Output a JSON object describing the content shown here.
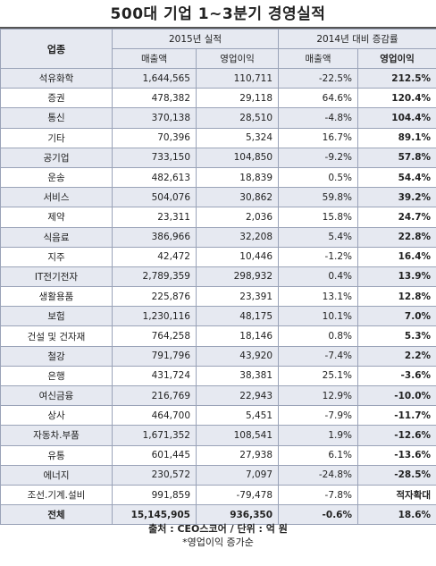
{
  "title": "500대 기업 1~3분기 경영실적",
  "header": {
    "category": "업종",
    "group_2015": "2015년 실적",
    "group_change": "2014년 대비 증감률",
    "sub": [
      "매출액",
      "영업이익",
      "매출액",
      "영업이익"
    ]
  },
  "rows": [
    {
      "cat": "석유화학",
      "sales": "1,644,565",
      "op": "110,711",
      "sales_chg": "-22.5%",
      "op_chg": "212.5%"
    },
    {
      "cat": "증권",
      "sales": "478,382",
      "op": "29,118",
      "sales_chg": "64.6%",
      "op_chg": "120.4%"
    },
    {
      "cat": "통신",
      "sales": "370,138",
      "op": "28,510",
      "sales_chg": "-4.8%",
      "op_chg": "104.4%"
    },
    {
      "cat": "기타",
      "sales": "70,396",
      "op": "5,324",
      "sales_chg": "16.7%",
      "op_chg": "89.1%"
    },
    {
      "cat": "공기업",
      "sales": "733,150",
      "op": "104,850",
      "sales_chg": "-9.2%",
      "op_chg": "57.8%"
    },
    {
      "cat": "운송",
      "sales": "482,613",
      "op": "18,839",
      "sales_chg": "0.5%",
      "op_chg": "54.4%"
    },
    {
      "cat": "서비스",
      "sales": "504,076",
      "op": "30,862",
      "sales_chg": "59.8%",
      "op_chg": "39.2%"
    },
    {
      "cat": "제약",
      "sales": "23,311",
      "op": "2,036",
      "sales_chg": "15.8%",
      "op_chg": "24.7%"
    },
    {
      "cat": "식음료",
      "sales": "386,966",
      "op": "32,208",
      "sales_chg": "5.4%",
      "op_chg": "22.8%"
    },
    {
      "cat": "지주",
      "sales": "42,472",
      "op": "10,446",
      "sales_chg": "-1.2%",
      "op_chg": "16.4%"
    },
    {
      "cat": "IT전기전자",
      "sales": "2,789,359",
      "op": "298,932",
      "sales_chg": "0.4%",
      "op_chg": "13.9%"
    },
    {
      "cat": "생활용품",
      "sales": "225,876",
      "op": "23,391",
      "sales_chg": "13.1%",
      "op_chg": "12.8%"
    },
    {
      "cat": "보험",
      "sales": "1,230,116",
      "op": "48,175",
      "sales_chg": "10.1%",
      "op_chg": "7.0%"
    },
    {
      "cat": "건설 및 건자재",
      "sales": "764,258",
      "op": "18,146",
      "sales_chg": "0.8%",
      "op_chg": "5.3%"
    },
    {
      "cat": "철강",
      "sales": "791,796",
      "op": "43,920",
      "sales_chg": "-7.4%",
      "op_chg": "2.2%"
    },
    {
      "cat": "은행",
      "sales": "431,724",
      "op": "38,381",
      "sales_chg": "25.1%",
      "op_chg": "-3.6%"
    },
    {
      "cat": "여신금융",
      "sales": "216,769",
      "op": "22,943",
      "sales_chg": "12.9%",
      "op_chg": "-10.0%"
    },
    {
      "cat": "상사",
      "sales": "464,700",
      "op": "5,451",
      "sales_chg": "-7.9%",
      "op_chg": "-11.7%"
    },
    {
      "cat": "자동차.부품",
      "sales": "1,671,352",
      "op": "108,541",
      "sales_chg": "1.9%",
      "op_chg": "-12.6%"
    },
    {
      "cat": "유통",
      "sales": "601,445",
      "op": "27,938",
      "sales_chg": "6.1%",
      "op_chg": "-13.6%"
    },
    {
      "cat": "에너지",
      "sales": "230,572",
      "op": "7,097",
      "sales_chg": "-24.8%",
      "op_chg": "-28.5%"
    },
    {
      "cat": "조선.기계.설비",
      "sales": "991,859",
      "op": "-79,478",
      "sales_chg": "-7.8%",
      "op_chg": "적자확대"
    }
  ],
  "total": {
    "cat": "전체",
    "sales": "15,145,905",
    "op": "936,350",
    "sales_chg": "-0.6%",
    "op_chg": "18.6%"
  },
  "footer": {
    "source": "출처 : CEO스코어 / 단위 : 억 원",
    "note": "*영업이익 증가순"
  }
}
